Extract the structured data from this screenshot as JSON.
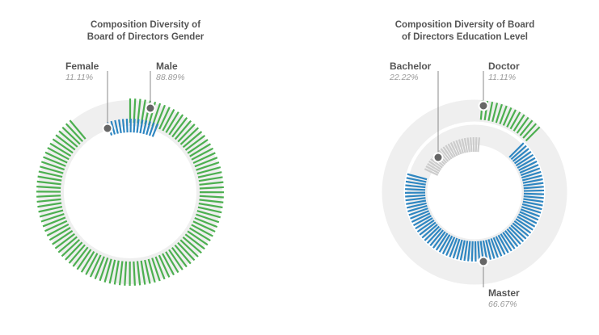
{
  "chart_data": [
    {
      "type": "pie",
      "title": "Composition Diversity of Board of Directors Gender",
      "colors": [
        "#4caf50",
        "#2e86c1"
      ],
      "slices": [
        {
          "label": "Male",
          "value": 88.89,
          "value_label": "88.89%",
          "color": "#4caf50"
        },
        {
          "label": "Female",
          "value": 11.11,
          "value_label": "11.11%",
          "color": "#2e86c1"
        }
      ]
    },
    {
      "type": "pie",
      "title": "Composition Diversity of Board of Directors Education Level",
      "colors": [
        "#4caf50",
        "#2e86c1",
        "#cccccc"
      ],
      "slices": [
        {
          "label": "Doctor",
          "value": 11.11,
          "value_label": "11.11%",
          "color": "#4caf50"
        },
        {
          "label": "Master",
          "value": 66.67,
          "value_label": "66.67%",
          "color": "#2e86c1"
        },
        {
          "label": "Bachelor",
          "value": 22.22,
          "value_label": "22.22%",
          "color": "#cccccc"
        }
      ]
    }
  ],
  "titles": {
    "gender": "Composition Diversity of\nBoard of Directors Gender",
    "education": "Composition Diversity of Board\nof Directors Education Level"
  }
}
